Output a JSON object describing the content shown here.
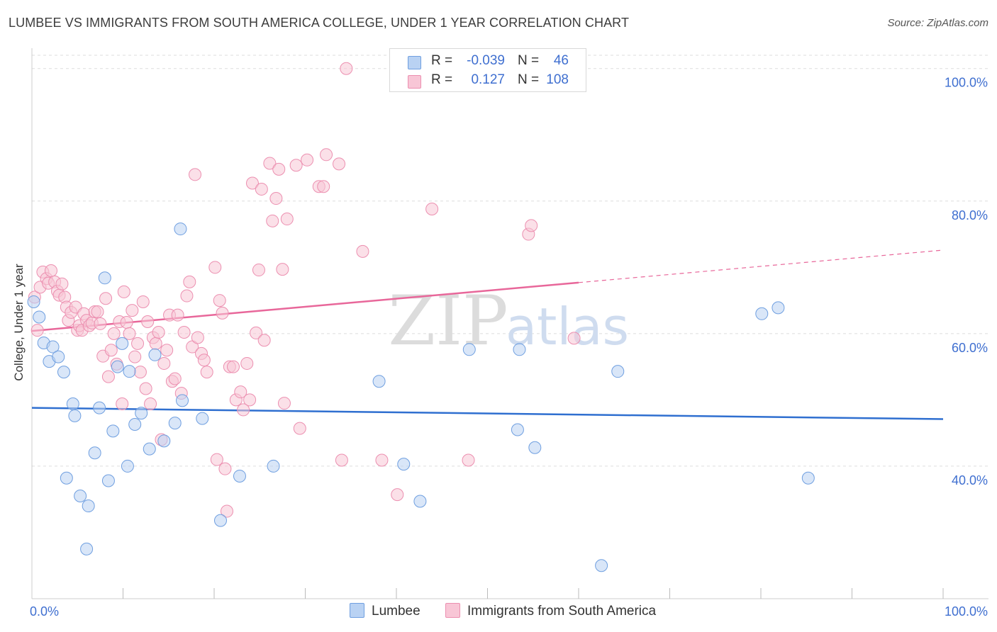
{
  "title": "LUMBEE VS IMMIGRANTS FROM SOUTH AMERICA COLLEGE, UNDER 1 YEAR CORRELATION CHART",
  "source": "Source: ZipAtlas.com",
  "watermark": {
    "zip": "ZIP",
    "atlas": "atlas"
  },
  "legend": {
    "rows": [
      {
        "r_label": "R =",
        "r_value": "-0.039",
        "n_label": "N =",
        "n_value": "46"
      },
      {
        "r_label": "R =",
        "r_value": "0.127",
        "n_label": "N =",
        "n_value": "108"
      }
    ]
  },
  "bottom_legend": {
    "lumbee": "Lumbee",
    "immigrants": "Immigrants from South America"
  },
  "colors": {
    "lumbee_fill": "#b9d2f3",
    "lumbee_stroke": "#6f9fe0",
    "lumbee_line": "#2f6fd0",
    "imm_fill": "#f8c6d6",
    "imm_stroke": "#ec8fb0",
    "imm_line": "#e8679a",
    "axis_text": "#3f6fd0",
    "grid": "#dddddd"
  },
  "chart_data": {
    "type": "scatter",
    "title": "LUMBEE VS IMMIGRANTS FROM SOUTH AMERICA COLLEGE, UNDER 1 YEAR CORRELATION CHART",
    "xlabel": "",
    "ylabel": "College, Under 1 year",
    "xlim": [
      0,
      100
    ],
    "ylim": [
      20,
      102
    ],
    "x_tick_labels": [
      {
        "value": 0,
        "label": "0.0%"
      },
      {
        "value": 100,
        "label": "100.0%"
      }
    ],
    "y_ticks": [
      {
        "value": 40,
        "label": "40.0%"
      },
      {
        "value": 60,
        "label": "60.0%"
      },
      {
        "value": 80,
        "label": "80.0%"
      },
      {
        "value": 100,
        "label": "100.0%"
      }
    ],
    "x_minor_ticks": [
      10,
      20,
      30,
      40,
      50,
      60,
      70,
      80,
      90,
      100
    ],
    "series": [
      {
        "name": "Lumbee",
        "r": -0.039,
        "n": 46,
        "trend": {
          "x_start": 0,
          "y_start": 48.8,
          "x_end": 100,
          "y_end": 47.1
        },
        "points": [
          [
            0.2,
            64.8
          ],
          [
            0.8,
            62.5
          ],
          [
            1.3,
            58.6
          ],
          [
            1.9,
            55.8
          ],
          [
            2.3,
            58.0
          ],
          [
            2.9,
            56.5
          ],
          [
            3.5,
            54.2
          ],
          [
            3.8,
            38.2
          ],
          [
            4.5,
            49.4
          ],
          [
            4.7,
            47.6
          ],
          [
            5.3,
            35.5
          ],
          [
            6.2,
            34.0
          ],
          [
            6.0,
            27.5
          ],
          [
            6.9,
            42.0
          ],
          [
            7.4,
            48.8
          ],
          [
            8.0,
            68.4
          ],
          [
            8.4,
            37.8
          ],
          [
            8.9,
            45.3
          ],
          [
            9.4,
            55.0
          ],
          [
            9.9,
            58.5
          ],
          [
            10.5,
            40.0
          ],
          [
            10.7,
            54.3
          ],
          [
            11.3,
            46.3
          ],
          [
            12.0,
            48.0
          ],
          [
            12.9,
            42.6
          ],
          [
            13.5,
            56.8
          ],
          [
            14.5,
            43.8
          ],
          [
            15.7,
            46.5
          ],
          [
            16.3,
            75.8
          ],
          [
            16.5,
            49.9
          ],
          [
            18.7,
            47.2
          ],
          [
            20.7,
            31.8
          ],
          [
            22.8,
            38.5
          ],
          [
            26.5,
            40.0
          ],
          [
            38.1,
            52.8
          ],
          [
            40.8,
            40.3
          ],
          [
            42.6,
            34.7
          ],
          [
            48.0,
            57.6
          ],
          [
            53.5,
            57.6
          ],
          [
            53.3,
            45.5
          ],
          [
            55.2,
            42.8
          ],
          [
            62.5,
            25.0
          ],
          [
            64.3,
            54.3
          ],
          [
            80.1,
            63.0
          ],
          [
            81.9,
            63.9
          ],
          [
            85.2,
            38.2
          ]
        ]
      },
      {
        "name": "Immigrants from South America",
        "r": 0.127,
        "n": 108,
        "trend": {
          "x_start": 0,
          "y_start": 60.4,
          "x_end": 60,
          "y_end": 67.7,
          "dashed_x_end": 100,
          "dashed_y_end": 72.6
        },
        "points": [
          [
            0.3,
            65.5
          ],
          [
            0.6,
            60.5
          ],
          [
            0.9,
            67.0
          ],
          [
            1.2,
            69.3
          ],
          [
            1.6,
            68.3
          ],
          [
            1.8,
            67.6
          ],
          [
            2.1,
            69.5
          ],
          [
            2.5,
            67.8
          ],
          [
            2.8,
            66.4
          ],
          [
            3.0,
            65.8
          ],
          [
            3.3,
            67.5
          ],
          [
            3.6,
            65.5
          ],
          [
            3.8,
            64.0
          ],
          [
            4.0,
            62.0
          ],
          [
            4.3,
            63.2
          ],
          [
            4.8,
            64.0
          ],
          [
            5.0,
            60.5
          ],
          [
            5.2,
            61.2
          ],
          [
            5.5,
            60.5
          ],
          [
            5.7,
            63.0
          ],
          [
            6.0,
            62.0
          ],
          [
            6.3,
            61.2
          ],
          [
            6.6,
            61.6
          ],
          [
            6.9,
            63.3
          ],
          [
            7.2,
            63.3
          ],
          [
            7.5,
            61.5
          ],
          [
            7.8,
            56.6
          ],
          [
            8.1,
            65.3
          ],
          [
            8.4,
            53.5
          ],
          [
            8.7,
            57.5
          ],
          [
            9.0,
            60.0
          ],
          [
            9.3,
            55.4
          ],
          [
            9.6,
            61.8
          ],
          [
            9.9,
            49.4
          ],
          [
            10.1,
            66.3
          ],
          [
            10.4,
            61.7
          ],
          [
            10.7,
            60.0
          ],
          [
            11.0,
            63.5
          ],
          [
            11.3,
            56.5
          ],
          [
            11.6,
            58.5
          ],
          [
            11.9,
            54.2
          ],
          [
            12.2,
            64.8
          ],
          [
            12.5,
            51.7
          ],
          [
            12.7,
            61.8
          ],
          [
            13.0,
            49.4
          ],
          [
            13.3,
            59.4
          ],
          [
            13.6,
            58.5
          ],
          [
            13.9,
            60.2
          ],
          [
            14.2,
            44.0
          ],
          [
            14.5,
            55.5
          ],
          [
            14.8,
            57.5
          ],
          [
            15.1,
            62.8
          ],
          [
            15.4,
            52.8
          ],
          [
            15.7,
            53.2
          ],
          [
            16.0,
            62.8
          ],
          [
            16.4,
            51.0
          ],
          [
            16.7,
            60.2
          ],
          [
            17.0,
            65.7
          ],
          [
            17.3,
            67.8
          ],
          [
            17.6,
            58.0
          ],
          [
            17.9,
            84.0
          ],
          [
            18.2,
            59.4
          ],
          [
            18.6,
            57.0
          ],
          [
            18.9,
            56.0
          ],
          [
            19.2,
            54.2
          ],
          [
            20.1,
            70.0
          ],
          [
            20.3,
            41.0
          ],
          [
            20.6,
            65.0
          ],
          [
            20.9,
            63.1
          ],
          [
            21.2,
            39.6
          ],
          [
            21.4,
            33.2
          ],
          [
            21.7,
            55.0
          ],
          [
            22.1,
            55.0
          ],
          [
            22.4,
            50.0
          ],
          [
            22.9,
            51.2
          ],
          [
            23.2,
            48.5
          ],
          [
            23.6,
            55.5
          ],
          [
            23.9,
            50.0
          ],
          [
            24.2,
            82.7
          ],
          [
            24.6,
            60.1
          ],
          [
            24.9,
            69.6
          ],
          [
            25.2,
            81.8
          ],
          [
            25.5,
            59.0
          ],
          [
            26.1,
            85.7
          ],
          [
            26.4,
            77.0
          ],
          [
            26.8,
            80.4
          ],
          [
            27.1,
            84.8
          ],
          [
            27.5,
            69.7
          ],
          [
            27.7,
            49.5
          ],
          [
            28.0,
            77.3
          ],
          [
            29.0,
            85.4
          ],
          [
            29.4,
            45.7
          ],
          [
            30.2,
            86.2
          ],
          [
            31.5,
            82.2
          ],
          [
            32.0,
            82.2
          ],
          [
            32.3,
            87.0
          ],
          [
            33.7,
            85.6
          ],
          [
            34.0,
            40.9
          ],
          [
            34.5,
            100.0
          ],
          [
            36.3,
            72.4
          ],
          [
            38.4,
            40.9
          ],
          [
            40.1,
            35.7
          ],
          [
            43.9,
            78.8
          ],
          [
            47.9,
            40.9
          ],
          [
            54.5,
            75.0
          ],
          [
            54.8,
            76.3
          ],
          [
            59.5,
            59.3
          ]
        ]
      }
    ]
  }
}
